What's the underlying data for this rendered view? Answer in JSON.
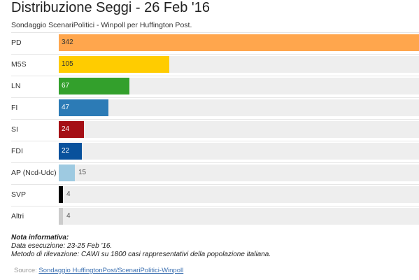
{
  "title": "Distribuzione Seggi - 26 Feb '16",
  "subtitle": "Sondaggio ScenariPolitici - Winpoll per Huffington Post.",
  "chart_data": {
    "type": "bar",
    "orientation": "horizontal",
    "categories": [
      "PD",
      "M5S",
      "LN",
      "FI",
      "SI",
      "FDI",
      "AP (Ncd-Udc)",
      "SVP",
      "Altri"
    ],
    "values": [
      342,
      105,
      67,
      47,
      24,
      22,
      15,
      4,
      4
    ],
    "value_labels": [
      "342",
      "105",
      "67",
      "47",
      "24",
      "22",
      "15",
      "4",
      "4"
    ],
    "colors": [
      "#ffa64d",
      "#ffcc00",
      "#33a02c",
      "#2c7bb6",
      "#a50f15",
      "#08519c",
      "#9ecae1",
      "#000000",
      "#cccccc"
    ],
    "xlim": [
      0,
      342
    ],
    "grid": false,
    "legend": "none"
  },
  "notes": {
    "title": "Nota informativa:",
    "lines": [
      "Data esecuzione: 23-25 Feb '16.",
      "Metodo di rilevazione: CAWI su 1800 casi rappresentativi della popolazione italiana."
    ]
  },
  "source": {
    "label": "Source:",
    "link_text": "Sondaggio HuffingtonPost/ScenariPolitici-Winpoll"
  }
}
